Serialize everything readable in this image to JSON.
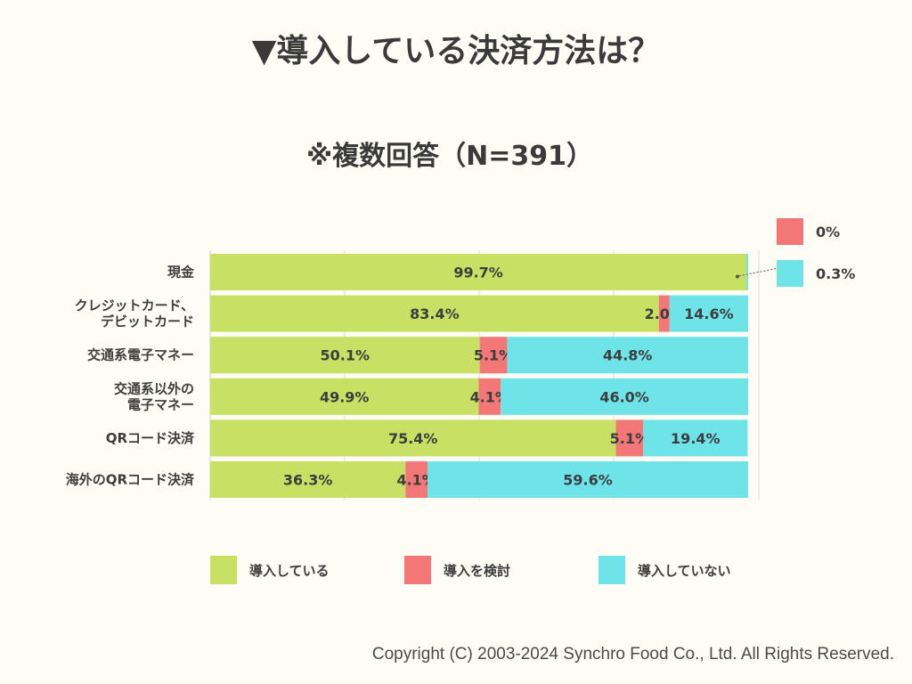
{
  "title": "▼導入している決済方法は？",
  "subtitle": "※複数回答（N=391）",
  "copyright": "Copyright (C) 2003-2024  Synchro Food Co., Ltd. All Rights Reserved.",
  "colors": {
    "introduced": "#c8e064",
    "considering": "#f47778",
    "not_introduced": "#6ee3e8",
    "background": "#fdfcf5"
  },
  "side_legend": [
    {
      "label": "0%",
      "color": "#f47778"
    },
    {
      "label": "0.3%",
      "color": "#6ee3e8"
    }
  ],
  "chart_data": {
    "type": "bar",
    "orientation": "horizontal",
    "stacked": true,
    "title": "▼導入している決済方法は？",
    "subtitle": "※複数回答（N=391）",
    "xlim": [
      0,
      100
    ],
    "categories": [
      [
        "現金"
      ],
      [
        "クレジットカード、",
        "デビットカード"
      ],
      [
        "交通系電子マネー"
      ],
      [
        "交通系以外の",
        "電子マネー"
      ],
      [
        "QRコード決済"
      ],
      [
        "海外のQRコード決済"
      ]
    ],
    "series": [
      {
        "name": "導入している",
        "color": "#c8e064",
        "values": [
          99.7,
          83.4,
          50.1,
          49.9,
          75.4,
          36.3
        ],
        "labels": [
          "99.7%",
          "83.4%",
          "50.1%",
          "49.9%",
          "75.4%",
          "36.3%"
        ]
      },
      {
        "name": "導入を検討",
        "color": "#f47778",
        "values": [
          0,
          2.0,
          5.1,
          4.1,
          5.1,
          4.1
        ],
        "labels": [
          "",
          "2.0%",
          "5.1%",
          "4.1%",
          "5.1%",
          "4.1%"
        ]
      },
      {
        "name": "導入していない",
        "color": "#6ee3e8",
        "values": [
          0.3,
          14.6,
          44.8,
          46.0,
          19.4,
          59.6
        ],
        "labels": [
          "",
          "14.6%",
          "44.8%",
          "46.0%",
          "19.4%",
          "59.6%"
        ]
      }
    ],
    "legend_position": "bottom"
  }
}
